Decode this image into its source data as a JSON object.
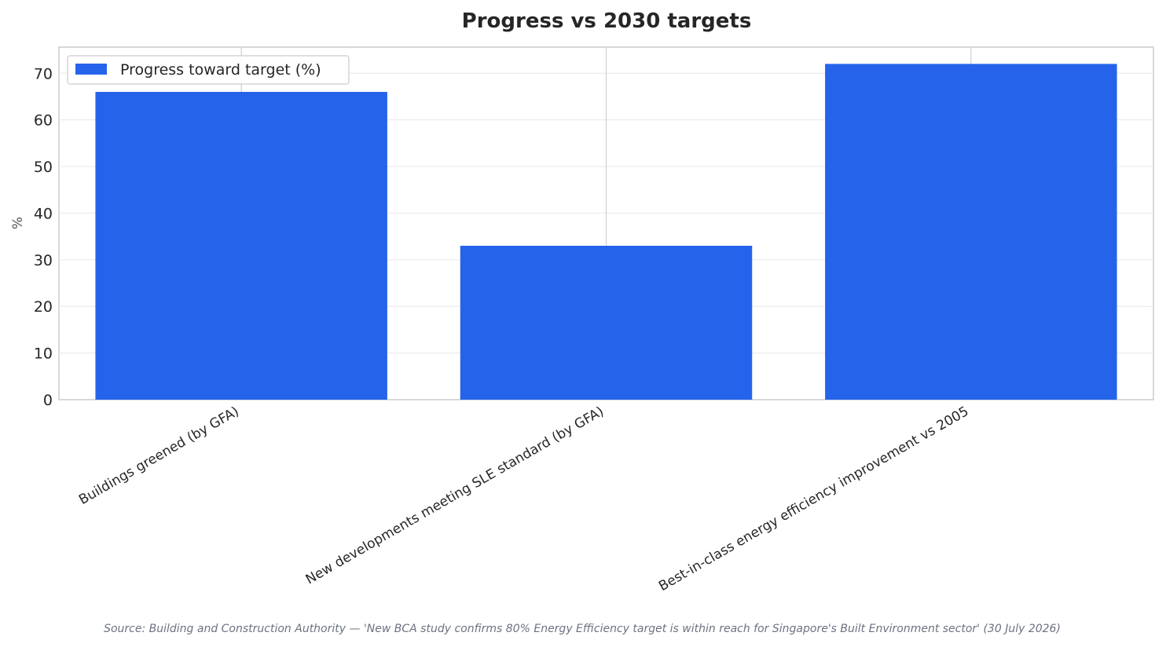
{
  "chart_data": {
    "type": "bar",
    "title": "Progress vs 2030 targets",
    "ylabel": "%",
    "xlabel": "",
    "categories": [
      "Buildings greened (by GFA)",
      "New developments meeting SLE standard (by GFA)",
      "Best-in-class energy efficiency improvement vs 2005"
    ],
    "series": [
      {
        "name": "Progress toward target (%)",
        "values": [
          66,
          33,
          72
        ],
        "color": "#2563eb"
      }
    ],
    "ylim": [
      0,
      75.6
    ],
    "yticks": [
      0,
      10,
      20,
      30,
      40,
      50,
      60,
      70
    ],
    "grid": true,
    "legend_position": "top-left",
    "source": "Source: Building and Construction Authority — 'New BCA study confirms 80% Energy Efficiency target is within reach for Singapore's Built Environment sector' (30 July 2026)"
  }
}
